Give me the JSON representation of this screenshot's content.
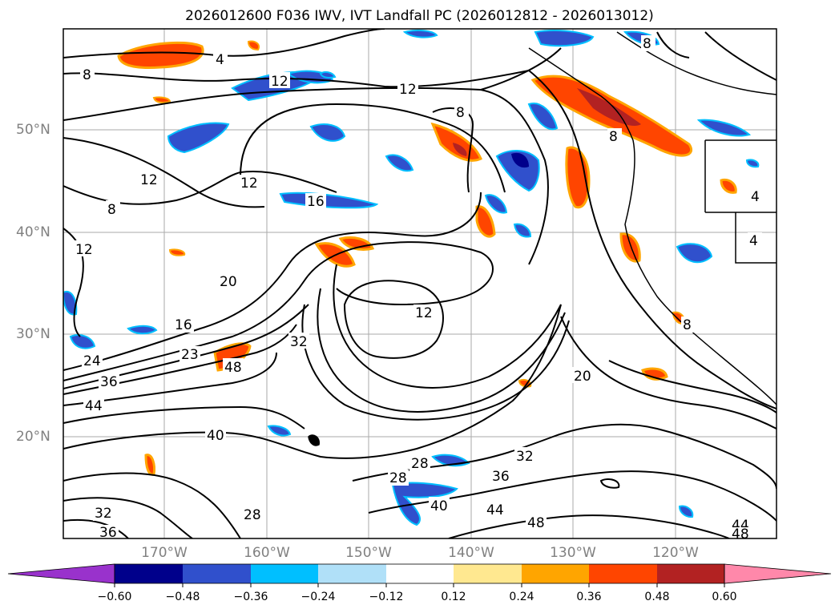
{
  "title": "2026012600 F036 IWV, IVT Landfall PC (2026012812 - 2026013012)",
  "lat_labels": [
    "50°N",
    "40°N",
    "30°N",
    "20°N"
  ],
  "lon_labels": [
    "170°W",
    "160°W",
    "150°W",
    "140°W",
    "130°W",
    "120°W"
  ],
  "colorbar": {
    "ticks": [
      "−0.60",
      "−0.48",
      "−0.36",
      "−0.24",
      "−0.12",
      "0.12",
      "0.24",
      "0.36",
      "0.48",
      "0.60"
    ],
    "colors": [
      "#9932cc",
      "#00008b",
      "#3050cc",
      "#00bfff",
      "#b0e0f8",
      "#ffffff",
      "#ffe890",
      "#ffa500",
      "#ff4500",
      "#b22222",
      "#ff88aa"
    ]
  },
  "contour_labels": [
    "4",
    "8",
    "12",
    "12",
    "8",
    "8",
    "12",
    "12",
    "8",
    "16",
    "12",
    "20",
    "16",
    "12",
    "24",
    "23",
    "36",
    "48",
    "32",
    "44",
    "40",
    "28",
    "28",
    "40",
    "36",
    "32",
    "44",
    "48",
    "20",
    "32",
    "36",
    "28",
    "44",
    "48",
    "8",
    "4",
    "4",
    "8"
  ]
}
